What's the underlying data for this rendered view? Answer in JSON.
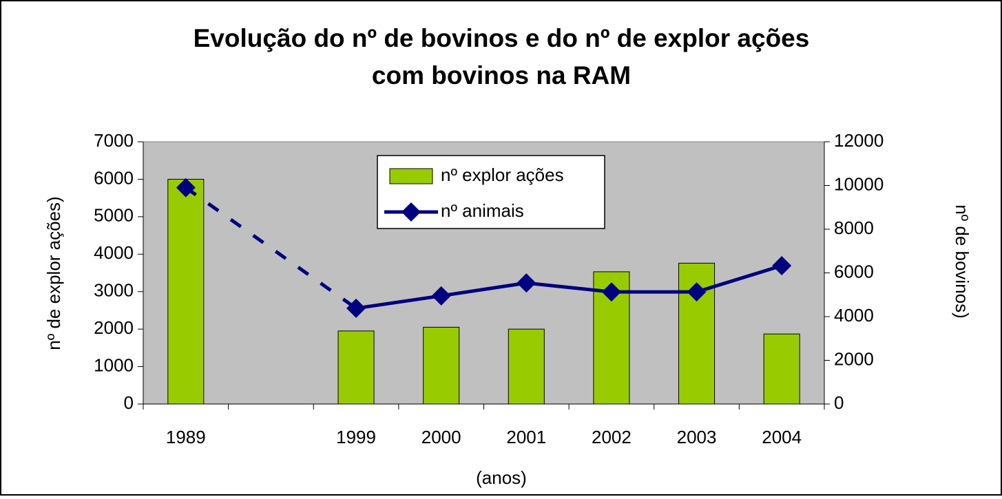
{
  "chart_data": {
    "type": "bar_line",
    "title": [
      "Evolução do nº de bovinos e do nº de explor ações",
      "com bovinos na RAM"
    ],
    "x_label": "(anos)",
    "y_label": "nº de explor ações)",
    "y2_label": "nº de bovinos)",
    "categories": [
      "1989",
      null,
      "1999",
      "2000",
      "2001",
      "2002",
      "2003",
      "2004"
    ],
    "series": [
      {
        "name": "nº explor ações",
        "type": "bar",
        "color": "#99cc00",
        "values": [
          6000,
          null,
          1950,
          2050,
          2000,
          3530,
          3760,
          1870
        ]
      },
      {
        "name": "nº animais",
        "type": "line",
        "axis": "y2",
        "color": "#000080",
        "values": [
          9900,
          null,
          4380,
          4950,
          5540,
          5130,
          5130,
          6330
        ]
      }
    ],
    "ylim": [
      0,
      7000
    ],
    "yticks": [
      0,
      1000,
      2000,
      3000,
      4000,
      5000,
      6000,
      7000
    ],
    "y2lim": [
      0,
      12000
    ],
    "y2ticks": [
      0,
      2000,
      4000,
      6000,
      8000,
      10000,
      12000
    ],
    "legend": "top"
  }
}
